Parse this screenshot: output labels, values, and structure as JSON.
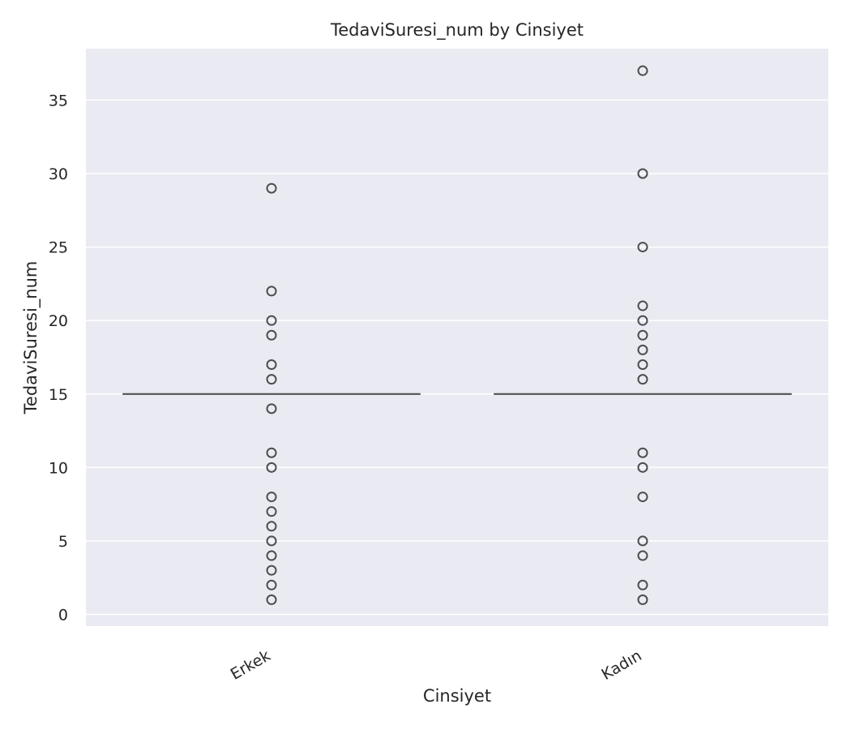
{
  "chart_data": {
    "type": "box",
    "title": "TedaviSuresi_num by Cinsiyet",
    "xlabel": "Cinsiyet",
    "ylabel": "TedaviSuresi_num",
    "categories": [
      "Erkek",
      "Kadın"
    ],
    "ylim": [
      -0.8,
      38.5
    ],
    "yticks": [
      "0",
      "5",
      "10",
      "15",
      "20",
      "25",
      "30",
      "35"
    ],
    "grid": true,
    "series": [
      {
        "category": "Erkek",
        "q1": 15,
        "median": 15,
        "q3": 15,
        "whisker_low": 15,
        "whisker_high": 15,
        "outliers": [
          1,
          2,
          3,
          4,
          5,
          6,
          7,
          8,
          10,
          11,
          14,
          16,
          17,
          19,
          20,
          22,
          29
        ]
      },
      {
        "category": "Kadın",
        "q1": 15,
        "median": 15,
        "q3": 15,
        "whisker_low": 15,
        "whisker_high": 15,
        "outliers": [
          1,
          2,
          4,
          5,
          8,
          10,
          11,
          16,
          17,
          18,
          19,
          20,
          21,
          25,
          30,
          37
        ]
      }
    ],
    "colors": {
      "plot_background": "#eaeaf2",
      "grid": "#ffffff",
      "box_line": "#4d4d4d",
      "text": "#262626"
    }
  }
}
